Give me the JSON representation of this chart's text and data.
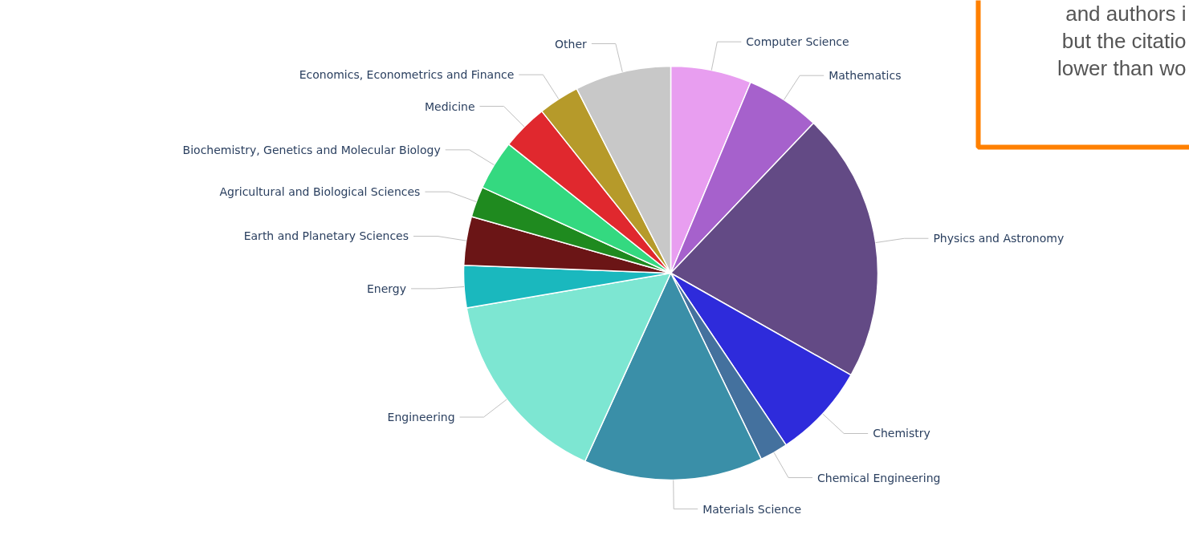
{
  "chart_data": {
    "type": "pie",
    "categories": [
      "Computer Science",
      "Mathematics",
      "Physics and Astronomy",
      "Chemistry",
      "Chemical Engineering",
      "Materials Science",
      "Engineering",
      "Energy",
      "Earth and Planetary Sciences",
      "Agricultural and Biological Sciences",
      "Biochemistry, Genetics and Molecular Biology",
      "Medicine",
      "Economics, Econometrics and Finance",
      "Other"
    ],
    "values": [
      6.3,
      5.8,
      21.1,
      7.4,
      2.2,
      14.0,
      15.5,
      3.3,
      3.8,
      2.4,
      3.9,
      3.6,
      3.2,
      7.5
    ],
    "colors": [
      "#e89ef0",
      "#a661cc",
      "#634a85",
      "#2e2bdb",
      "#44719e",
      "#3a8fa8",
      "#7de6d2",
      "#1ab8be",
      "#6b1516",
      "#1f8a1f",
      "#34d980",
      "#e0282e",
      "#b69a2a",
      "#c8c8c8"
    ],
    "annotations": [
      "and authors i",
      "but the citatio",
      "lower than wo"
    ]
  }
}
